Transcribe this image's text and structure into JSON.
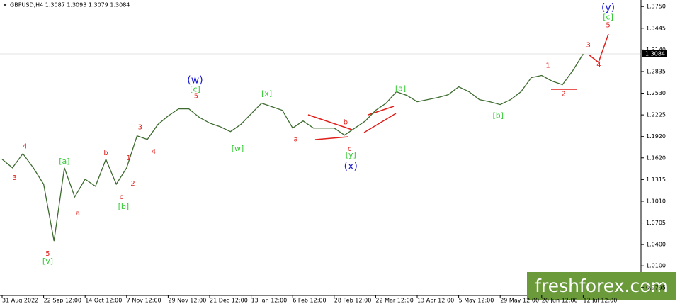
{
  "chart_data": {
    "type": "line",
    "title": "GBPUSD,H4 1.3087 1.3093 1.3079 1.3084",
    "watermark": "freshforex.com",
    "current_price": {
      "value": 1.3084,
      "label": "1.3084"
    },
    "categories": [
      "31 Aug 2022",
      null,
      null,
      null,
      "22 Sep 12:00",
      null,
      null,
      null,
      "14 Oct 12:00",
      null,
      null,
      null,
      "7 Nov 12:00",
      null,
      null,
      null,
      "29 Nov 12:00",
      null,
      null,
      null,
      "21 Dec 12:00",
      null,
      null,
      null,
      "13 Jan 12:00",
      null,
      null,
      null,
      "6 Feb 12:00",
      null,
      null,
      null,
      "28 Feb 12:00",
      null,
      null,
      null,
      "22 Mar 12:00",
      null,
      null,
      null,
      "13 Apr 12:00",
      null,
      null,
      null,
      "5 May 12:00",
      null,
      null,
      null,
      "29 May 12:00",
      null,
      null,
      null,
      "20 Jun 12:00",
      null,
      null,
      null,
      "12 Jul 12:00",
      null,
      null,
      null,
      null,
      null
    ],
    "series": [
      {
        "name": "GBPUSD",
        "color": "#3d6b2f",
        "values": [
          1.16,
          1.148,
          1.168,
          1.148,
          1.125,
          1.045,
          1.148,
          1.107,
          1.132,
          1.122,
          1.16,
          1.125,
          1.148,
          1.193,
          1.188,
          1.209,
          1.221,
          1.231,
          1.231,
          1.219,
          1.211,
          1.206,
          1.199,
          1.209,
          1.224,
          1.239,
          1.234,
          1.229,
          1.204,
          1.214,
          1.204,
          1.204,
          1.204,
          1.194,
          1.204,
          1.214,
          1.229,
          1.239,
          1.255,
          1.25,
          1.241,
          1.244,
          1.247,
          1.251,
          1.262,
          1.255,
          1.244,
          1.241,
          1.237,
          1.244,
          1.255,
          1.275,
          1.278,
          1.27,
          1.265,
          1.285,
          1.3084,
          null,
          null,
          null,
          null,
          null
        ]
      }
    ],
    "ylim": [
      0.9683,
      1.3842
    ],
    "yticks": [
      {
        "value": 0.9795,
        "label": "0.9795"
      },
      {
        "value": 1.01,
        "label": "1.0100"
      },
      {
        "value": 1.04,
        "label": "1.0400"
      },
      1.0705,
      {
        "value": 1.101,
        "label": "1.1010"
      },
      1.1315,
      {
        "value": 1.162,
        "label": "1.1620"
      },
      {
        "value": 1.192,
        "label": "1.1920"
      },
      1.2225,
      {
        "value": 1.253,
        "label": "1.2530"
      },
      1.2835,
      {
        "value": 1.314,
        "label": "1.3140"
      },
      1.3445,
      {
        "value": 1.375,
        "label": "1.3750"
      }
    ],
    "annotations": [
      {
        "color": "#e0201b",
        "size": 10,
        "labels": [
          {
            "text": "4",
            "x": 2.2,
            "y": 1.178
          },
          {
            "text": "3",
            "x": 1.2,
            "y": 1.134
          },
          {
            "text": "5",
            "x": 4.4,
            "y": 1.027
          },
          {
            "text": "a",
            "x": 7.3,
            "y": 1.084
          },
          {
            "text": "b",
            "x": 10.0,
            "y": 1.169
          },
          {
            "text": "c",
            "x": 11.5,
            "y": 1.107
          },
          {
            "text": "1",
            "x": 12.2,
            "y": 1.162
          },
          {
            "text": "2",
            "x": 12.6,
            "y": 1.126
          },
          {
            "text": "3",
            "x": 13.3,
            "y": 1.205
          },
          {
            "text": "4",
            "x": 14.6,
            "y": 1.171
          },
          {
            "text": "5",
            "x": 18.7,
            "y": 1.249
          },
          {
            "text": "a",
            "x": 28.3,
            "y": 1.188
          },
          {
            "text": "b",
            "x": 33.1,
            "y": 1.212
          },
          {
            "text": "c",
            "x": 33.5,
            "y": 1.175
          },
          {
            "text": "1",
            "x": 52.6,
            "y": 1.292
          },
          {
            "text": "2",
            "x": 54.1,
            "y": 1.252
          },
          {
            "text": "3",
            "x": 56.5,
            "y": 1.321
          },
          {
            "text": "4",
            "x": 57.5,
            "y": 1.293
          },
          {
            "text": "5",
            "x": 58.4,
            "y": 1.349
          }
        ]
      },
      {
        "color": "#33cc33",
        "size": 11,
        "labels": [
          {
            "text": "[v]",
            "x": 4.4,
            "y": 1.016
          },
          {
            "text": "[a]",
            "x": 6.0,
            "y": 1.157
          },
          {
            "text": "[b]",
            "x": 11.7,
            "y": 1.093
          },
          {
            "text": "[c]",
            "x": 18.6,
            "y": 1.258
          },
          {
            "text": "[w]",
            "x": 22.7,
            "y": 1.175
          },
          {
            "text": "[x]",
            "x": 25.5,
            "y": 1.252
          },
          {
            "text": "[y]",
            "x": 33.6,
            "y": 1.166
          },
          {
            "text": "[a]",
            "x": 38.4,
            "y": 1.259
          },
          {
            "text": "[b]",
            "x": 47.8,
            "y": 1.221
          },
          {
            "text": "[c]",
            "x": 58.4,
            "y": 1.36
          }
        ]
      },
      {
        "color": "#1a1ad0",
        "size": 14,
        "labels": [
          {
            "text": "(w)",
            "x": 18.6,
            "y": 1.271
          },
          {
            "text": "(x)",
            "x": 33.6,
            "y": 1.15
          },
          {
            "text": "(y)",
            "x": 58.4,
            "y": 1.373
          }
        ]
      }
    ]
  }
}
